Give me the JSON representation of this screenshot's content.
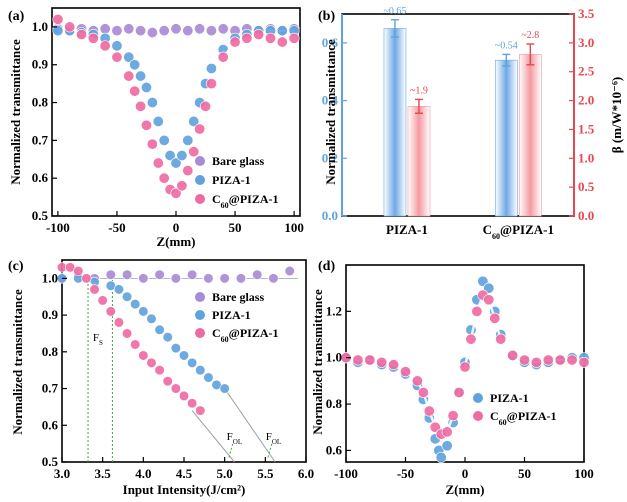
{
  "colors": {
    "bare_glass": "#a88bd6",
    "piza": "#5fa3dd",
    "c60": "#f06aa2",
    "bar_blue": "#6fa8e6",
    "bar_red": "#f59aa0",
    "red_axis": "#e8474f",
    "blue_axis": "#5fa3dd",
    "guide_green": "#3daa3d",
    "fit_line": "#9aa0aa"
  },
  "chart_data": [
    {
      "id": "a",
      "type": "scatter",
      "panel_label": "(a)",
      "xlabel": "Z(mm)",
      "ylabel": "Normalized transmittance",
      "xlim": [
        -105,
        105
      ],
      "ylim": [
        0.5,
        1.05
      ],
      "xticks": [
        "-100",
        "-50",
        "0",
        "50",
        "100"
      ],
      "yticks": [
        "0.5",
        "0.6",
        "0.7",
        "0.8",
        "0.9",
        "1.0"
      ],
      "legend": [
        "Bare glass",
        "PIZA-1",
        "C60@PIZA-1"
      ],
      "legend_position": "bottom-right",
      "series": [
        {
          "name": "Bare glass",
          "x": [
            -100,
            -90,
            -80,
            -70,
            -60,
            -50,
            -40,
            -30,
            -20,
            -10,
            0,
            10,
            20,
            30,
            40,
            50,
            60,
            70,
            80,
            90,
            100
          ],
          "y": [
            0.995,
            0.99,
            0.995,
            0.99,
            0.995,
            0.99,
            0.995,
            0.99,
            0.985,
            0.99,
            0.995,
            0.99,
            0.995,
            0.99,
            0.995,
            0.99,
            0.995,
            0.99,
            0.995,
            0.99,
            0.995
          ]
        },
        {
          "name": "PIZA-1",
          "x": [
            -100,
            -90,
            -80,
            -70,
            -60,
            -50,
            -40,
            -35,
            -30,
            -25,
            -20,
            -15,
            -10,
            -5,
            0,
            5,
            10,
            15,
            20,
            25,
            30,
            40,
            50,
            60,
            70,
            80,
            90,
            100
          ],
          "y": [
            0.99,
            0.99,
            0.985,
            0.98,
            0.97,
            0.95,
            0.92,
            0.9,
            0.87,
            0.84,
            0.8,
            0.75,
            0.7,
            0.66,
            0.64,
            0.66,
            0.7,
            0.75,
            0.8,
            0.85,
            0.89,
            0.94,
            0.97,
            0.98,
            0.99,
            0.99,
            0.99,
            0.99
          ]
        },
        {
          "name": "C60@PIZA-1",
          "x": [
            -100,
            -90,
            -80,
            -70,
            -60,
            -50,
            -40,
            -35,
            -30,
            -25,
            -20,
            -15,
            -10,
            -5,
            0,
            5,
            10,
            15,
            20,
            25,
            30,
            40,
            50,
            60,
            70,
            80,
            90,
            100
          ],
          "y": [
            1.02,
            1.0,
            0.98,
            0.97,
            0.95,
            0.92,
            0.87,
            0.83,
            0.79,
            0.74,
            0.69,
            0.64,
            0.6,
            0.57,
            0.56,
            0.58,
            0.62,
            0.67,
            0.73,
            0.79,
            0.85,
            0.92,
            0.96,
            0.97,
            0.98,
            0.97,
            0.96,
            0.97
          ]
        }
      ]
    },
    {
      "id": "b",
      "type": "bar",
      "panel_label": "(b)",
      "categories": [
        "PIZA-1",
        "C60@PIZA-1"
      ],
      "category_labels_tex": [
        "PIZA-1",
        "C60@PIZA-1"
      ],
      "ylabel": "Normalized transmittance",
      "y2label": "β (m/W*10⁻⁶)",
      "ylim": [
        0.0,
        0.7
      ],
      "y2lim": [
        0.0,
        3.5
      ],
      "yticks": [
        "0.0",
        "0.2",
        "0.4",
        "0.6"
      ],
      "y2ticks": [
        "0.0",
        "0.5",
        "1.0",
        "1.5",
        "2.0",
        "2.5",
        "3.0",
        "3.5"
      ],
      "series": [
        {
          "name": "Normalized transmittance",
          "axis": "left",
          "values": [
            0.65,
            0.54
          ],
          "errors": [
            0.03,
            0.02
          ],
          "labels": [
            "~0.65",
            "~0.54"
          ]
        },
        {
          "name": "β",
          "axis": "right",
          "values": [
            1.9,
            2.8
          ],
          "errors": [
            0.12,
            0.18
          ],
          "labels": [
            "~1.9",
            "~2.8"
          ]
        }
      ]
    },
    {
      "id": "c",
      "type": "scatter",
      "panel_label": "(c)",
      "xlabel": "Input Intensity(J/cm²)",
      "ylabel": "Normalized transmittance",
      "xlim": [
        3.0,
        6.0
      ],
      "ylim": [
        0.5,
        1.05
      ],
      "xticks": [
        "3.0",
        "3.5",
        "4.0",
        "4.5",
        "5.0",
        "5.5",
        "6.0"
      ],
      "yticks": [
        "0.5",
        "0.6",
        "0.7",
        "0.8",
        "0.9",
        "1.0"
      ],
      "legend": [
        "Bare glass",
        "PIZA-1",
        "C60@PIZA-1"
      ],
      "legend_position": "right",
      "annotations": {
        "fs": "Fs",
        "fol": "FOL"
      },
      "series": [
        {
          "name": "Bare glass",
          "x": [
            3.0,
            3.2,
            3.4,
            3.6,
            3.8,
            4.0,
            4.2,
            4.4,
            4.6,
            4.8,
            5.0,
            5.2,
            5.4,
            5.6,
            5.8
          ],
          "y": [
            1.0,
            1.01,
            1.0,
            1.01,
            1.01,
            1.0,
            1.01,
            1.0,
            1.01,
            1.0,
            1.0,
            1.0,
            1.01,
            1.0,
            1.02
          ]
        },
        {
          "name": "PIZA-1",
          "x": [
            3.0,
            3.2,
            3.4,
            3.6,
            3.7,
            3.8,
            3.9,
            4.0,
            4.1,
            4.2,
            4.3,
            4.4,
            4.5,
            4.6,
            4.7,
            4.8,
            4.9,
            5.0
          ],
          "y": [
            1.0,
            1.0,
            0.99,
            0.98,
            0.97,
            0.95,
            0.93,
            0.91,
            0.89,
            0.86,
            0.84,
            0.81,
            0.79,
            0.77,
            0.75,
            0.73,
            0.71,
            0.7
          ]
        },
        {
          "name": "C60@PIZA-1",
          "x": [
            3.0,
            3.1,
            3.2,
            3.3,
            3.4,
            3.5,
            3.6,
            3.7,
            3.8,
            3.9,
            4.0,
            4.1,
            4.2,
            4.3,
            4.4,
            4.5,
            4.6,
            4.7
          ],
          "y": [
            1.03,
            1.03,
            1.02,
            1.0,
            0.97,
            0.94,
            0.91,
            0.88,
            0.85,
            0.82,
            0.79,
            0.77,
            0.75,
            0.72,
            0.7,
            0.68,
            0.66,
            0.64
          ]
        }
      ]
    },
    {
      "id": "d",
      "type": "scatter",
      "panel_label": "(d)",
      "xlabel": "Z(mm)",
      "ylabel": "Normalized transmittance",
      "xlim": [
        -100,
        100
      ],
      "ylim": [
        0.55,
        1.4
      ],
      "xticks": [
        "-100",
        "-50",
        "0",
        "50",
        "100"
      ],
      "yticks": [
        "0.6",
        "0.8",
        "1.0",
        "1.2"
      ],
      "legend": [
        "PIZA-1",
        "C60@PIZA-1"
      ],
      "legend_position": "bottom-right",
      "series": [
        {
          "name": "PIZA-1",
          "x": [
            -100,
            -90,
            -80,
            -70,
            -60,
            -50,
            -40,
            -35,
            -30,
            -25,
            -22,
            -20,
            -15,
            -10,
            -5,
            0,
            5,
            10,
            15,
            20,
            25,
            30,
            40,
            50,
            60,
            70,
            80,
            90,
            100
          ],
          "y": [
            1.0,
            0.98,
            0.99,
            0.97,
            0.96,
            0.93,
            0.88,
            0.82,
            0.74,
            0.65,
            0.6,
            0.57,
            0.62,
            0.72,
            0.85,
            0.98,
            1.12,
            1.25,
            1.33,
            1.3,
            1.2,
            1.1,
            1.01,
            0.98,
            0.97,
            0.98,
            0.99,
            1.0,
            1.0
          ]
        },
        {
          "name": "C60@PIZA-1",
          "x": [
            -100,
            -90,
            -80,
            -70,
            -60,
            -50,
            -40,
            -35,
            -30,
            -25,
            -20,
            -15,
            -10,
            -5,
            0,
            5,
            10,
            15,
            20,
            25,
            30,
            40,
            50,
            60,
            70,
            80,
            90,
            100
          ],
          "y": [
            1.0,
            0.99,
            0.99,
            0.98,
            0.97,
            0.94,
            0.9,
            0.85,
            0.77,
            0.7,
            0.67,
            0.68,
            0.75,
            0.85,
            0.96,
            1.08,
            1.2,
            1.27,
            1.25,
            1.17,
            1.08,
            1.01,
            0.99,
            0.98,
            0.99,
            0.99,
            0.99,
            0.98
          ]
        }
      ]
    }
  ]
}
